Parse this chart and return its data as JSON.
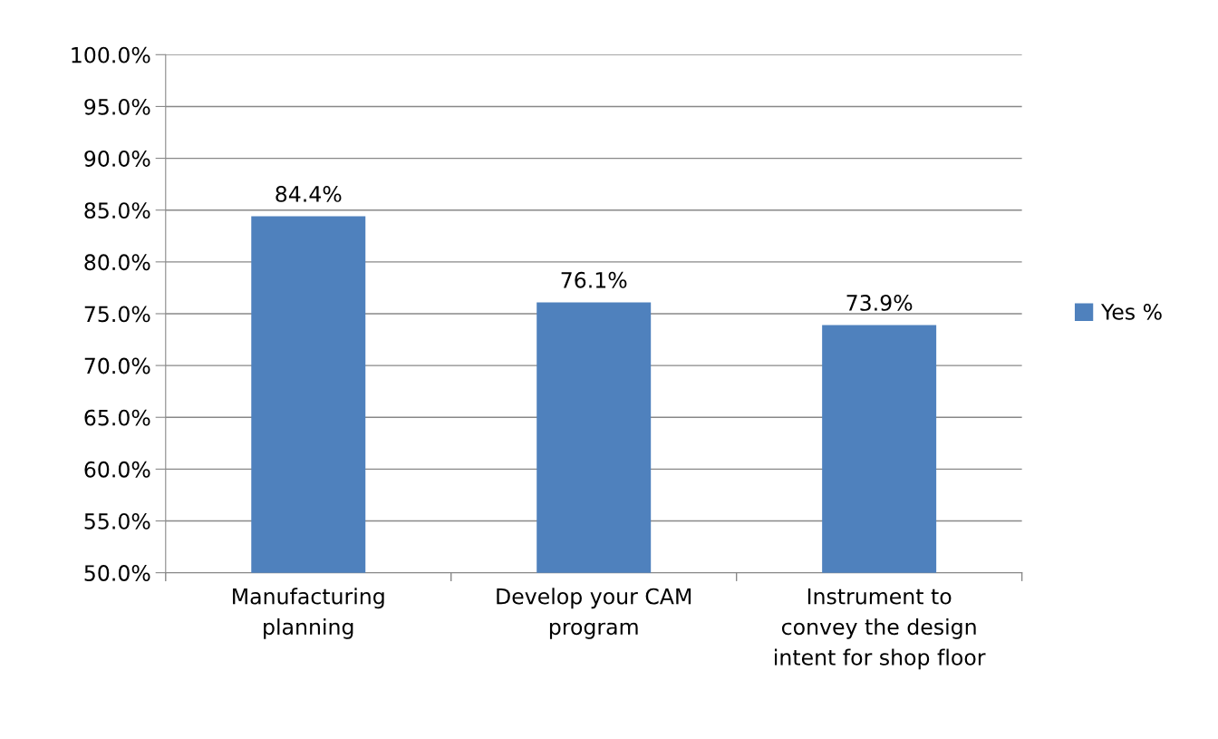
{
  "chart_data": {
    "type": "bar",
    "categories": [
      "Manufacturing\nplanning",
      "Develop your CAM\nprogram",
      "Instrument to\nconvey the design\nintent for shop floor"
    ],
    "series": [
      {
        "name": "Yes %",
        "color": "#4f81bd",
        "values": [
          84.4,
          76.1,
          73.9
        ],
        "value_labels": [
          "84.4%",
          "76.1%",
          "73.9%"
        ]
      }
    ],
    "ylim": [
      50,
      100
    ],
    "yticks": [
      {
        "value": 50,
        "label": "50.0%"
      },
      {
        "value": 55,
        "label": "55.0%"
      },
      {
        "value": 60,
        "label": "60.0%"
      },
      {
        "value": 65,
        "label": "65.0%"
      },
      {
        "value": 70,
        "label": "70.0%"
      },
      {
        "value": 75,
        "label": "75.0%"
      },
      {
        "value": 80,
        "label": "80.0%"
      },
      {
        "value": 85,
        "label": "85.0%"
      },
      {
        "value": 90,
        "label": "90.0%"
      },
      {
        "value": 95,
        "label": "95.0%"
      },
      {
        "value": 100,
        "label": "100.0%"
      }
    ],
    "grid": "y",
    "legend": "right"
  }
}
